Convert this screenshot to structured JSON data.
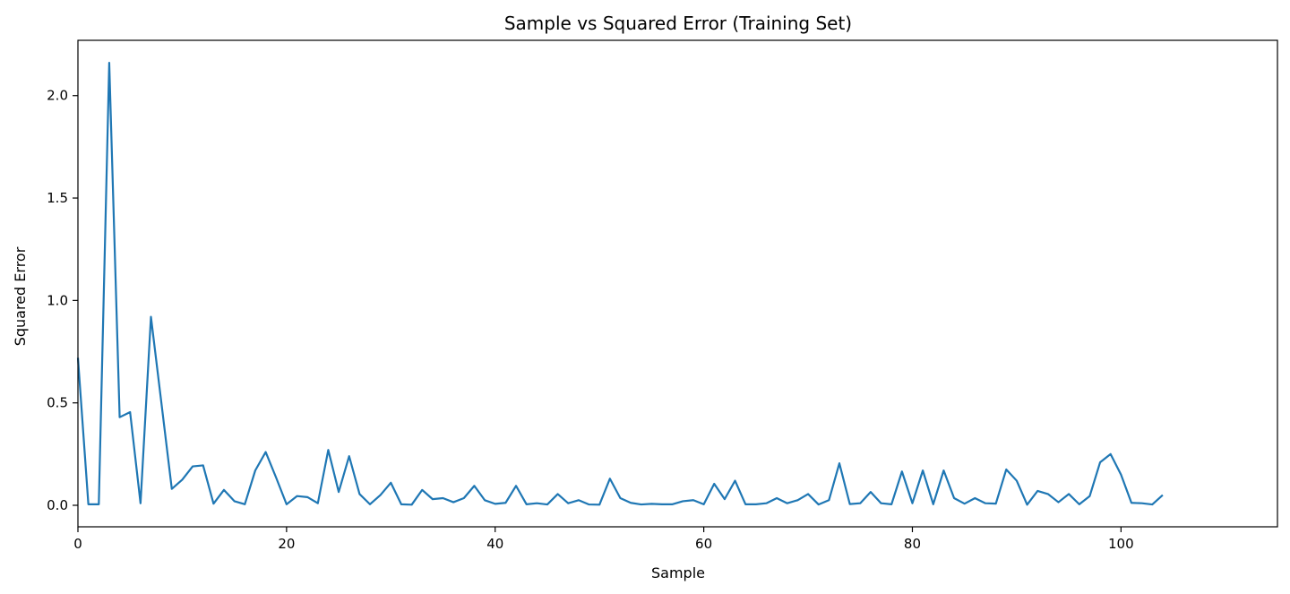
{
  "chart_data": {
    "type": "line",
    "title": "Sample vs Squared Error (Training Set)",
    "xlabel": "Sample",
    "ylabel": "Squared Error",
    "xlim": [
      0,
      115
    ],
    "ylim": [
      -0.105,
      2.27
    ],
    "xticks": [
      0,
      20,
      40,
      60,
      80,
      100
    ],
    "xtick_labels": [
      "0",
      "20",
      "40",
      "60",
      "80",
      "100"
    ],
    "yticks": [
      0.0,
      0.5,
      1.0,
      1.5,
      2.0
    ],
    "ytick_labels": [
      "0.0",
      "0.5",
      "1.0",
      "1.5",
      "2.0"
    ],
    "grid": false,
    "legend": "none",
    "color": "#1f77b4",
    "x": [
      0,
      1,
      2,
      3,
      4,
      5,
      6,
      7,
      8,
      9,
      10,
      11,
      12,
      13,
      14,
      15,
      16,
      17,
      18,
      19,
      20,
      21,
      22,
      23,
      24,
      25,
      26,
      27,
      28,
      29,
      30,
      31,
      32,
      33,
      34,
      35,
      36,
      37,
      38,
      39,
      40,
      41,
      42,
      43,
      44,
      45,
      46,
      47,
      48,
      49,
      50,
      51,
      52,
      53,
      54,
      55,
      56,
      57,
      58,
      59,
      60,
      61,
      62,
      63,
      64,
      65,
      66,
      67,
      68,
      69,
      70,
      71,
      72,
      73,
      74,
      75,
      76,
      77,
      78,
      79,
      80,
      81,
      82,
      83,
      84,
      85,
      86,
      87,
      88,
      89,
      90,
      91,
      92,
      93,
      94,
      95,
      96,
      97,
      98,
      99,
      100,
      101,
      102,
      103,
      104
    ],
    "y": [
      0.72,
      0.005,
      0.005,
      2.16,
      0.43,
      0.455,
      0.01,
      0.92,
      0.5,
      0.08,
      0.125,
      0.19,
      0.195,
      0.008,
      0.075,
      0.02,
      0.005,
      0.17,
      0.26,
      0.135,
      0.005,
      0.045,
      0.04,
      0.01,
      0.27,
      0.065,
      0.24,
      0.055,
      0.005,
      0.05,
      0.11,
      0.005,
      0.003,
      0.075,
      0.03,
      0.035,
      0.015,
      0.035,
      0.095,
      0.025,
      0.007,
      0.012,
      0.095,
      0.005,
      0.01,
      0.004,
      0.055,
      0.01,
      0.025,
      0.004,
      0.003,
      0.13,
      0.035,
      0.012,
      0.004,
      0.007,
      0.005,
      0.005,
      0.02,
      0.025,
      0.005,
      0.105,
      0.03,
      0.12,
      0.005,
      0.005,
      0.01,
      0.035,
      0.01,
      0.025,
      0.055,
      0.004,
      0.025,
      0.205,
      0.006,
      0.01,
      0.065,
      0.01,
      0.005,
      0.165,
      0.01,
      0.17,
      0.005,
      0.17,
      0.035,
      0.008,
      0.035,
      0.01,
      0.008,
      0.175,
      0.12,
      0.003,
      0.07,
      0.055,
      0.015,
      0.055,
      0.005,
      0.045,
      0.21,
      0.25,
      0.15,
      0.012,
      0.01,
      0.004,
      0.05
    ]
  }
}
